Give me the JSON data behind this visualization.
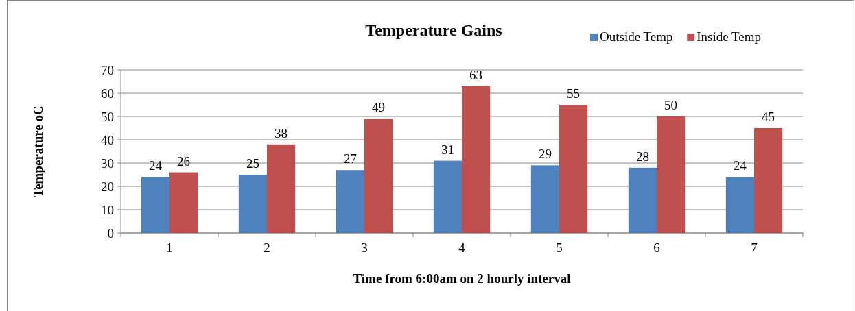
{
  "chart_data": {
    "type": "bar",
    "title": "Temperature Gains",
    "xlabel": "Time from 6:00am on 2 hourly interval",
    "ylabel": "Temperature oC",
    "categories": [
      "1",
      "2",
      "3",
      "4",
      "5",
      "6",
      "7"
    ],
    "series": [
      {
        "name": "Outside Temp",
        "color": "#4f81bd",
        "values": [
          24,
          25,
          27,
          31,
          29,
          28,
          24
        ]
      },
      {
        "name": "Inside Temp",
        "color": "#c0504d",
        "values": [
          26,
          38,
          49,
          63,
          55,
          50,
          45
        ]
      }
    ],
    "ylim": [
      0,
      70
    ],
    "yticks": [
      0,
      10,
      20,
      30,
      40,
      50,
      60,
      70
    ],
    "grid": "y",
    "legend": "top right",
    "data_labels": true
  }
}
